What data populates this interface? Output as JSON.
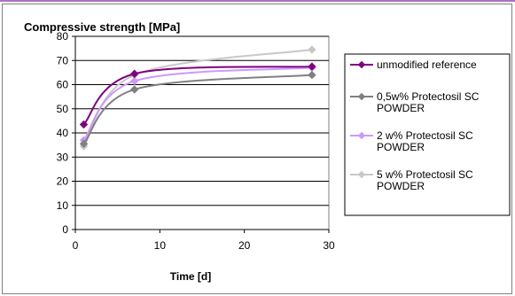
{
  "chart_data": {
    "type": "line",
    "title": "Compressive strength [MPa]",
    "xlabel": "Time [d]",
    "ylabel": "",
    "xlim": [
      0,
      30
    ],
    "ylim": [
      0,
      80
    ],
    "xticks": [
      0,
      10,
      20,
      30
    ],
    "yticks": [
      0,
      10,
      20,
      30,
      40,
      50,
      60,
      70,
      80
    ],
    "grid": "horizontal",
    "legend": "right",
    "series": [
      {
        "name": "unmodified reference",
        "color": "#800080",
        "marker": "diamond",
        "x": [
          1,
          7,
          28
        ],
        "y": [
          43.5,
          64.5,
          67.5
        ],
        "legend_lines": [
          "unmodified reference"
        ]
      },
      {
        "name": "0,5w% Protectosil SC POWDER",
        "color": "#808080",
        "marker": "diamond",
        "x": [
          1,
          7,
          28
        ],
        "y": [
          35.5,
          58,
          64
        ],
        "legend_lines": [
          "0,5w% Protectosil SC",
          "POWDER"
        ]
      },
      {
        "name": "2 w% Protectosil SC POWDER",
        "color": "#cc99ff",
        "marker": "diamond",
        "x": [
          1,
          7,
          28
        ],
        "y": [
          37,
          61.5,
          67
        ],
        "legend_lines": [
          "2 w% Protectosil SC",
          "POWDER"
        ]
      },
      {
        "name": "5 w% Protectosil SC POWDER",
        "color": "#c8c8c8",
        "marker": "diamond",
        "x": [
          1,
          7,
          28
        ],
        "y": [
          34.5,
          64,
          74.5
        ],
        "legend_lines": [
          "5 w% Protectosil SC",
          "POWDER"
        ]
      }
    ]
  }
}
